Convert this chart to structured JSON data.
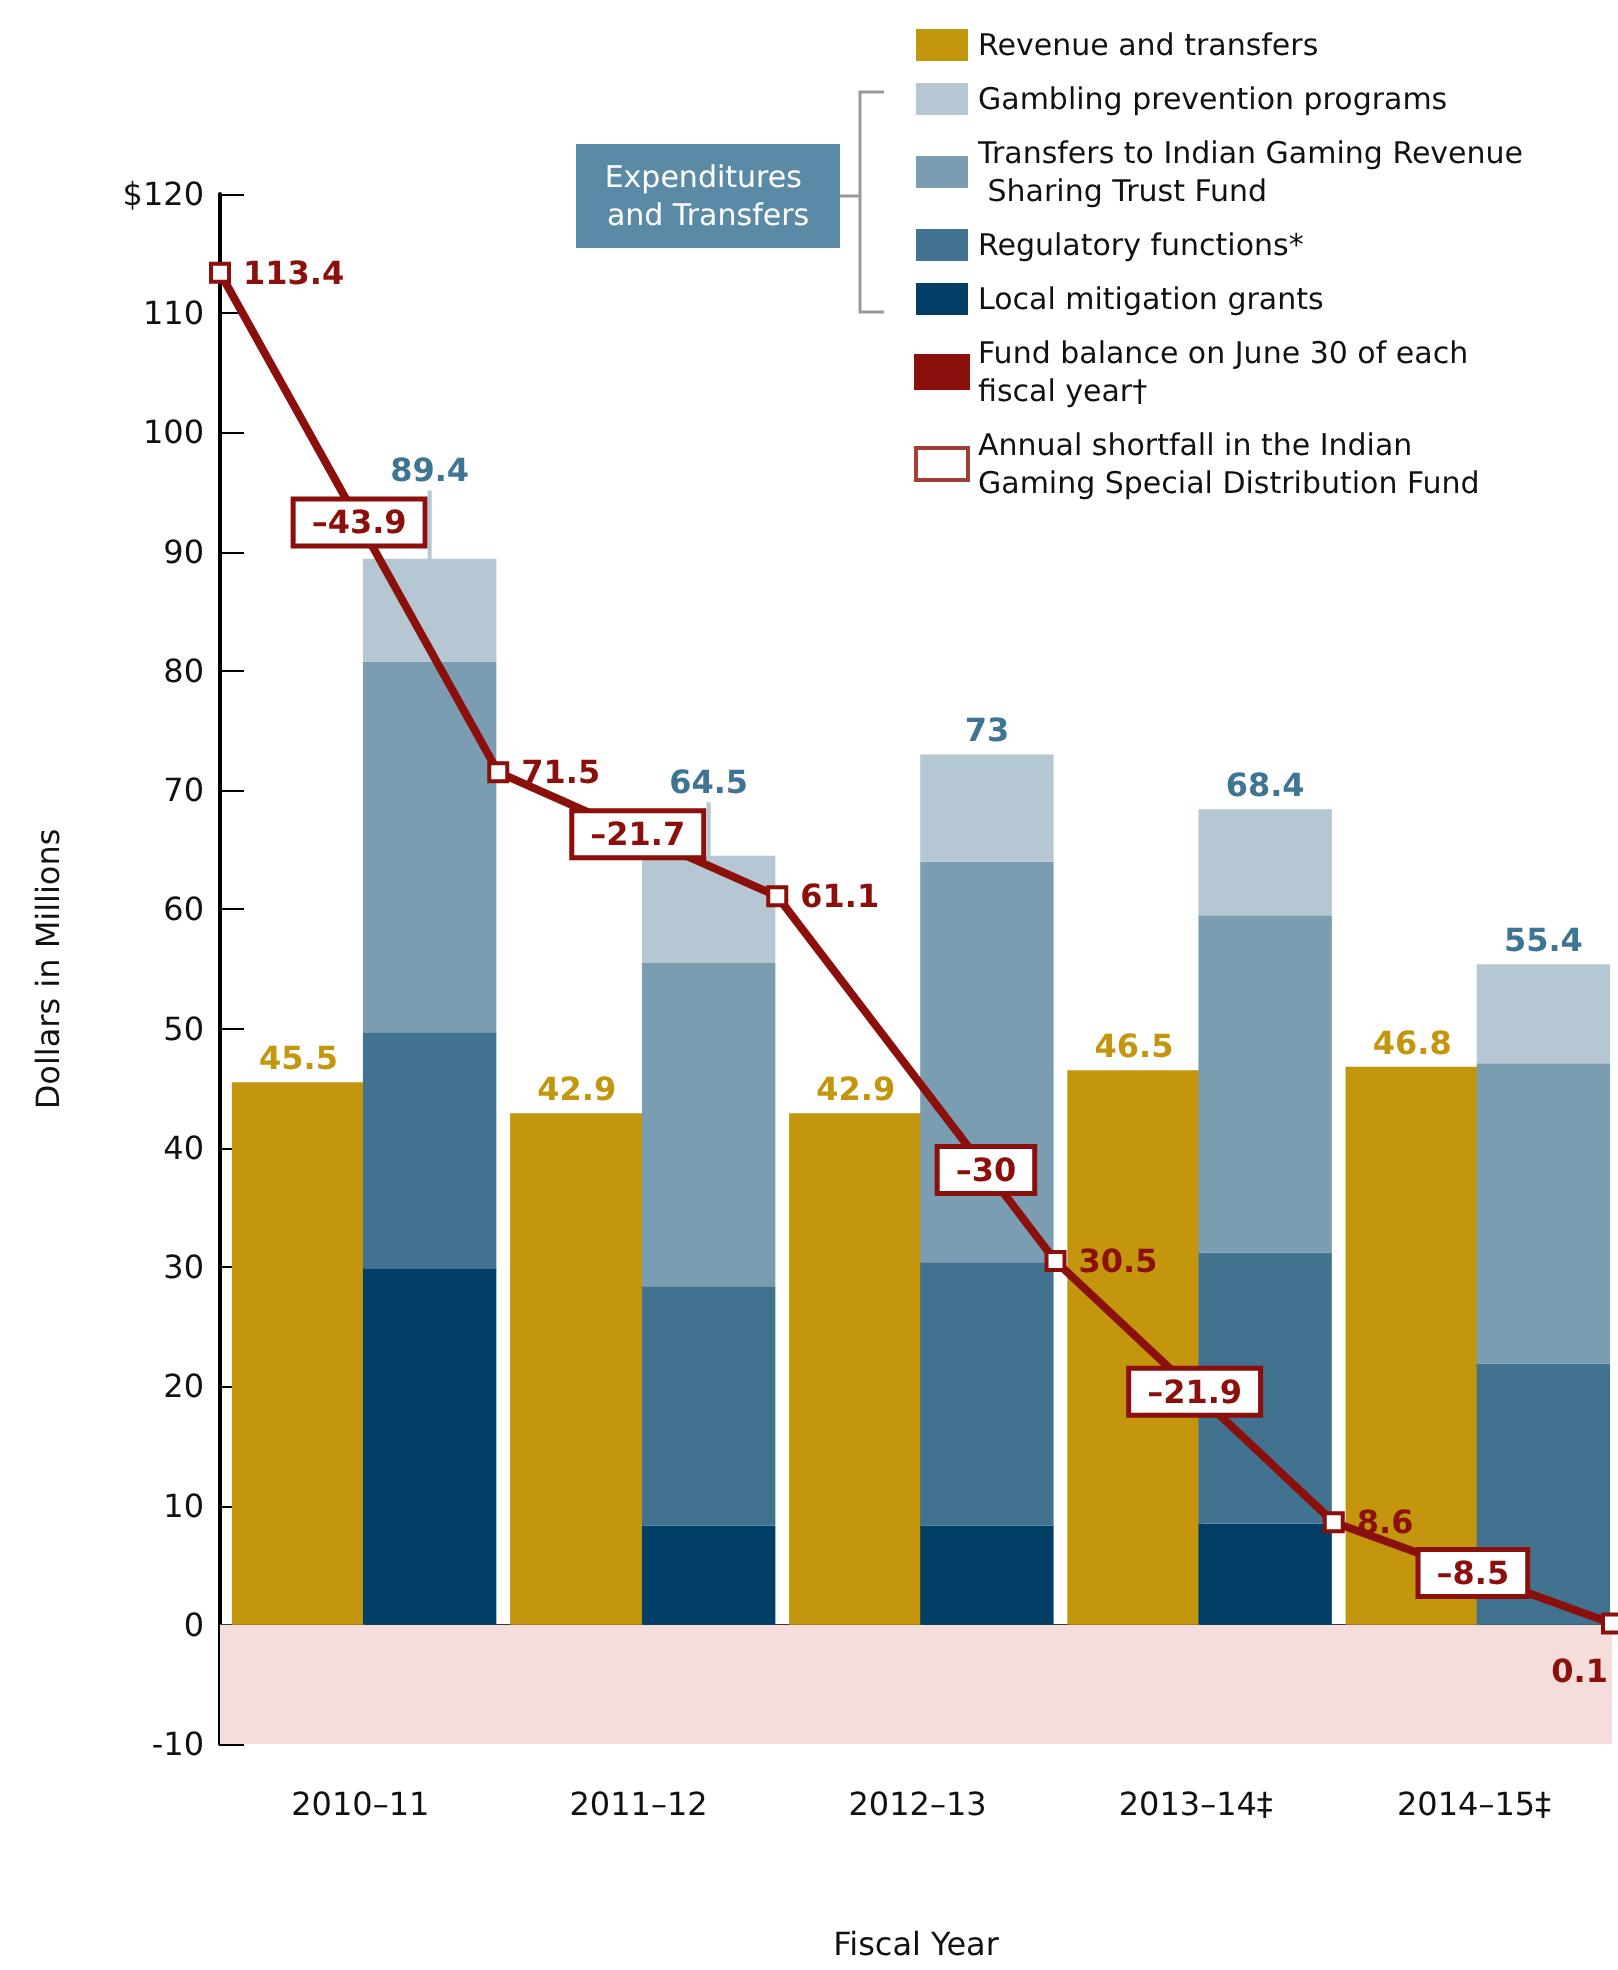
{
  "chart_data": {
    "type": "bar",
    "xlabel": "Fiscal Year",
    "ylabel": "Dollars in Millions",
    "legend": "top right",
    "xlim": [
      "2010-06-30",
      "2015-06-30"
    ],
    "xticks": [
      {
        "value": "2010-12-31",
        "label": "2010–11"
      },
      {
        "value": "2011-12-31",
        "label": "2011–12"
      },
      {
        "value": "2012-12-31",
        "label": "2012–13"
      },
      {
        "value": "2013-12-31",
        "label": "2013–14‡"
      },
      {
        "value": "2014-12-31",
        "label": "2014–15‡"
      }
    ],
    "ylim": [
      -10,
      120
    ],
    "yticks": [
      -10,
      0,
      10,
      20,
      30,
      40,
      50,
      60,
      70,
      80,
      90,
      100,
      110,
      {
        "value": 120,
        "label": "$120"
      }
    ],
    "annotations": [
      "Expenditures and Transfers",
      "–43.9",
      "–21.7",
      "–30",
      "–21.9",
      "–8.5",
      {
        "text": "89.4",
        "x": "2011-04-01",
        "y": 89.4
      },
      {
        "text": "64.5",
        "x": "2012-04-01",
        "y": 64.5
      },
      {
        "text": "73",
        "x": "2013-04-01",
        "y": 73
      },
      {
        "text": "68.4",
        "x": "2014-04-01",
        "y": 68.4
      },
      {
        "text": "55.4",
        "x": "2015-04-01",
        "y": 55.4
      }
    ],
    "bands": [
      {
        "axis": "y",
        "from": -10,
        "to": 0,
        "color": "#f4dddb"
      }
    ],
    "series": [
      {
        "name": "Revenue and transfers",
        "color": "#c4960e",
        "x": [
          "2010-10-11",
          "2011-10-11",
          "2012-10-11",
          "2013-10-11",
          "2014-10-11"
        ],
        "values": [
          45.5,
          42.9,
          42.9,
          46.5,
          46.8
        ],
        "value_labels": [
          "45.5",
          "42.9",
          "42.9",
          "46.5",
          "46.8"
        ]
      },
      {
        "name": "Local mitigation grants",
        "color": "#023f66",
        "x": [
          "2011-04-01",
          "2012-04-01",
          "2013-04-01",
          "2014-04-01"
        ],
        "base": [
          0,
          0,
          0,
          0
        ],
        "values": [
          29.9,
          8.3,
          8.3,
          8.5
        ]
      },
      {
        "name": "Regulatory functions*",
        "color": "#41728f",
        "x": [
          "2011-04-01",
          "2012-04-01",
          "2013-04-01",
          "2014-04-01",
          "2015-04-01"
        ],
        "base": [
          29.9,
          8.3,
          8.3,
          8.5,
          0
        ],
        "values": [
          19.8,
          20.1,
          22.1,
          22.7,
          21.9
        ]
      },
      {
        "name": "Transfers to Indian Gaming Revenue Sharing Trust Fund",
        "color": "#7a9db2",
        "x": [
          "2011-04-01",
          "2012-04-01",
          "2013-04-01",
          "2014-04-01",
          "2015-04-01"
        ],
        "base": [
          49.7,
          28.4,
          30.4,
          31.2,
          21.9
        ],
        "values": [
          31.1,
          27.1,
          33.6,
          28.3,
          25.2
        ]
      },
      {
        "name": "Gambling prevention programs",
        "color": "#b4c7d2",
        "x": [
          "2011-04-01",
          "2012-04-01",
          "2013-04-01",
          "2014-04-01",
          "2015-04-01"
        ],
        "base": [
          80.8,
          55.5,
          64.0,
          59.5,
          47.1
        ],
        "values": [
          8.6,
          9.0,
          9.0,
          8.9,
          8.3
        ]
      },
      {
        "name": "Fund balance on June 30 of each fiscal year†",
        "type": "line",
        "color": "#8b0f0a",
        "marker": "square",
        "x": [
          "2010-06-30",
          "2011-06-30",
          "2012-06-30",
          "2013-06-30",
          "2014-06-30",
          "2015-06-30"
        ],
        "values": [
          113.4,
          71.5,
          61.1,
          30.5,
          8.6,
          0.1
        ],
        "value_labels": [
          "113.4",
          "71.5",
          "61.1",
          "30.5",
          "8.6",
          "0.1"
        ]
      },
      {
        "name": "Annual shortfall in the Indian Gaming Special Distribution Fund",
        "type": "scatter",
        "color": "#8b0f0a",
        "values": [
          null,
          null,
          null,
          null,
          null
        ]
      }
    ]
  }
}
